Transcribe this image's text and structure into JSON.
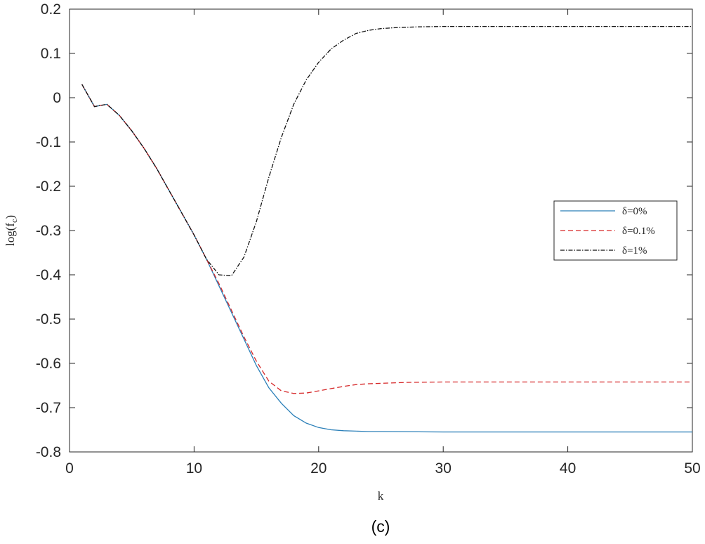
{
  "chart_data": {
    "type": "line",
    "title": "",
    "caption": "(c)",
    "xlabel": "k",
    "ylabel": "log(f_c)",
    "ylabel_main": "log(f",
    "ylabel_sub": "c",
    "ylabel_close": ")",
    "xlim": [
      0,
      50
    ],
    "ylim": [
      -0.8,
      0.2
    ],
    "xticks": [
      0,
      10,
      20,
      30,
      40,
      50
    ],
    "xtick_labels": [
      "0",
      "10",
      "20",
      "30",
      "40",
      "50"
    ],
    "yticks": [
      0.2,
      0.1,
      0,
      -0.1,
      -0.2,
      -0.3,
      -0.4,
      -0.5,
      -0.6,
      -0.7,
      -0.8
    ],
    "ytick_labels": [
      "0.2",
      "0.1",
      "0",
      "-0.1",
      "-0.2",
      "-0.3",
      "-0.4",
      "-0.5",
      "-0.6",
      "-0.7",
      "-0.8"
    ],
    "grid": false,
    "legend_position": "right",
    "series": [
      {
        "name": "δ=0%",
        "color": "#2a7fb8",
        "style": "solid",
        "x": [
          1,
          2,
          3,
          4,
          5,
          6,
          7,
          8,
          9,
          10,
          11,
          12,
          13,
          14,
          15,
          16,
          17,
          18,
          19,
          20,
          21,
          22,
          23,
          24,
          25,
          30,
          35,
          40,
          45,
          50
        ],
        "y": [
          0.03,
          -0.02,
          -0.015,
          -0.04,
          -0.075,
          -0.115,
          -0.16,
          -0.21,
          -0.26,
          -0.31,
          -0.365,
          -0.425,
          -0.485,
          -0.545,
          -0.605,
          -0.655,
          -0.69,
          -0.718,
          -0.735,
          -0.745,
          -0.75,
          -0.752,
          -0.753,
          -0.754,
          -0.754,
          -0.755,
          -0.755,
          -0.755,
          -0.755,
          -0.755
        ]
      },
      {
        "name": "δ=0.1%",
        "color": "#d62728",
        "style": "dashed",
        "x": [
          1,
          2,
          3,
          4,
          5,
          6,
          7,
          8,
          9,
          10,
          11,
          12,
          13,
          14,
          15,
          16,
          17,
          18,
          19,
          20,
          21,
          22,
          23,
          24,
          25,
          27,
          30,
          35,
          40,
          45,
          50
        ],
        "y": [
          0.03,
          -0.02,
          -0.015,
          -0.04,
          -0.075,
          -0.115,
          -0.16,
          -0.21,
          -0.26,
          -0.31,
          -0.365,
          -0.42,
          -0.48,
          -0.54,
          -0.595,
          -0.64,
          -0.662,
          -0.668,
          -0.667,
          -0.662,
          -0.657,
          -0.652,
          -0.648,
          -0.646,
          -0.645,
          -0.643,
          -0.642,
          -0.642,
          -0.642,
          -0.642,
          -0.642
        ]
      },
      {
        "name": "δ=1%",
        "color": "#111111",
        "style": "dashdot",
        "x": [
          1,
          2,
          3,
          4,
          5,
          6,
          7,
          8,
          9,
          10,
          11,
          12,
          13,
          14,
          15,
          16,
          17,
          18,
          19,
          20,
          21,
          22,
          23,
          24,
          25,
          26,
          28,
          30,
          35,
          40,
          45,
          50
        ],
        "y": [
          0.03,
          -0.02,
          -0.015,
          -0.04,
          -0.075,
          -0.115,
          -0.16,
          -0.21,
          -0.26,
          -0.31,
          -0.365,
          -0.4,
          -0.402,
          -0.36,
          -0.28,
          -0.18,
          -0.09,
          -0.015,
          0.04,
          0.08,
          0.11,
          0.13,
          0.145,
          0.152,
          0.156,
          0.158,
          0.16,
          0.161,
          0.161,
          0.161,
          0.161,
          0.161
        ]
      }
    ]
  }
}
